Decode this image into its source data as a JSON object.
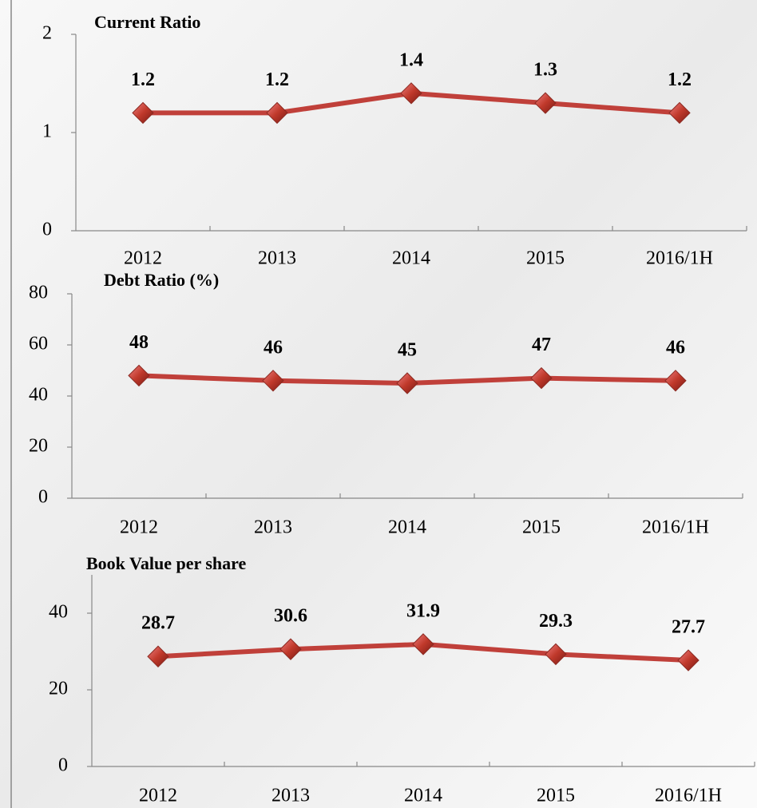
{
  "chart_data": [
    {
      "type": "line",
      "title": "Current Ratio",
      "categories": [
        "2012",
        "2013",
        "2014",
        "2015",
        "2016/1H"
      ],
      "values": [
        1.2,
        1.2,
        1.4,
        1.3,
        1.2
      ],
      "color": "#c0403a",
      "ylim": [
        0,
        2
      ],
      "yticks": [
        0,
        1,
        2
      ]
    },
    {
      "type": "line",
      "title": "Debt Ratio (%)",
      "categories": [
        "2012",
        "2013",
        "2014",
        "2015",
        "2016/1H"
      ],
      "values": [
        48,
        46,
        45,
        47,
        46
      ],
      "color": "#c0403a",
      "ylim": [
        0,
        80
      ],
      "yticks": [
        0,
        20,
        40,
        60,
        80
      ]
    },
    {
      "type": "line",
      "title": "Book Value per share",
      "categories": [
        "2012",
        "2013",
        "2014",
        "2015",
        "2016/1H"
      ],
      "values": [
        28.7,
        30.6,
        31.9,
        29.3,
        27.7
      ],
      "color": "#c0403a",
      "ylim": [
        0,
        50
      ],
      "yticks": [
        0,
        20,
        40
      ]
    }
  ]
}
